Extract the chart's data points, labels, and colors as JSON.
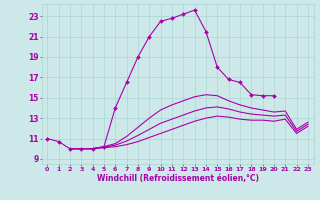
{
  "xlabel": "Windchill (Refroidissement éolien,°C)",
  "bg_color": "#cce8e8",
  "grid_color": "#aad4d4",
  "line_color": "#aa00aa",
  "xlim": [
    -0.5,
    23.5
  ],
  "ylim": [
    8.5,
    24.2
  ],
  "xticks": [
    0,
    1,
    2,
    3,
    4,
    5,
    6,
    7,
    8,
    9,
    10,
    11,
    12,
    13,
    14,
    15,
    16,
    17,
    18,
    19,
    20,
    21,
    22,
    23
  ],
  "yticks": [
    9,
    11,
    13,
    15,
    17,
    19,
    21,
    23
  ],
  "s1_x": [
    0,
    1,
    2,
    3,
    4,
    5,
    6,
    7,
    8,
    9,
    10,
    11,
    12,
    13,
    14,
    15,
    16,
    17,
    18,
    19,
    20
  ],
  "s1_y": [
    11.0,
    10.7,
    10.0,
    10.0,
    10.0,
    10.2,
    14.0,
    16.5,
    19.0,
    21.0,
    22.5,
    22.8,
    23.2,
    23.6,
    21.5,
    18.0,
    16.8,
    16.5,
    15.3,
    15.2,
    15.2
  ],
  "s2_x": [
    2,
    3,
    4,
    5,
    6,
    7,
    8,
    9,
    10,
    11,
    12,
    13,
    14,
    15,
    16,
    17,
    18,
    19,
    20,
    21,
    22,
    23
  ],
  "s2_y": [
    10.0,
    10.0,
    10.0,
    10.1,
    10.2,
    10.4,
    10.7,
    11.1,
    11.5,
    11.9,
    12.3,
    12.7,
    13.0,
    13.2,
    13.1,
    12.9,
    12.8,
    12.8,
    12.7,
    12.9,
    11.5,
    12.2
  ],
  "s3_x": [
    2,
    3,
    4,
    5,
    6,
    7,
    8,
    9,
    10,
    11,
    12,
    13,
    14,
    15,
    16,
    17,
    18,
    19,
    20,
    21,
    22,
    23
  ],
  "s3_y": [
    10.0,
    10.0,
    10.0,
    10.15,
    10.35,
    10.75,
    11.3,
    11.9,
    12.5,
    12.9,
    13.3,
    13.7,
    14.0,
    14.1,
    13.9,
    13.6,
    13.4,
    13.3,
    13.2,
    13.3,
    11.7,
    12.4
  ],
  "s4_x": [
    2,
    3,
    4,
    5,
    6,
    7,
    8,
    9,
    10,
    11,
    12,
    13,
    14,
    15,
    16,
    17,
    18,
    19,
    20,
    21,
    22,
    23
  ],
  "s4_y": [
    10.0,
    10.0,
    10.0,
    10.2,
    10.5,
    11.2,
    12.1,
    13.0,
    13.8,
    14.3,
    14.7,
    15.1,
    15.3,
    15.2,
    14.7,
    14.3,
    14.0,
    13.8,
    13.6,
    13.7,
    11.9,
    12.6
  ]
}
